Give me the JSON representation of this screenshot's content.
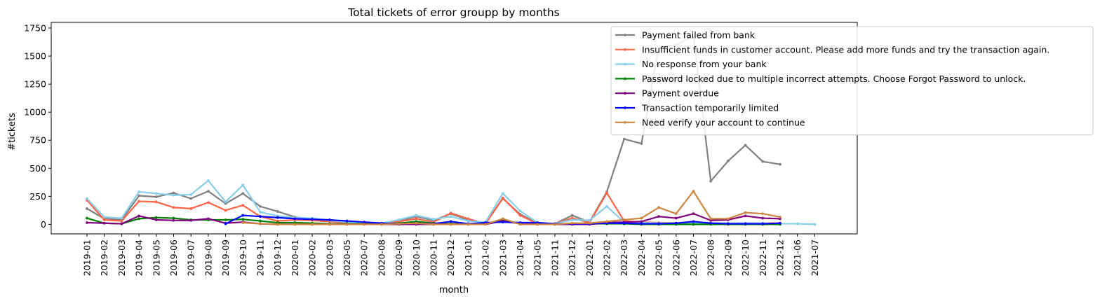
{
  "chart_data": {
    "type": "line",
    "title": "Total tickets of error groupp by months",
    "xlabel": "month",
    "ylabel": "#tickets",
    "ylim": [
      -85,
      1800
    ],
    "yticks": [
      0,
      250,
      500,
      750,
      1000,
      1250,
      1500,
      1750
    ],
    "grid": false,
    "legend_position": "top-right",
    "categories": [
      "2019-01",
      "2019-02",
      "2019-03",
      "2019-04",
      "2019-05",
      "2019-06",
      "2019-07",
      "2019-08",
      "2019-09",
      "2019-10",
      "2019-11",
      "2019-12",
      "2020-01",
      "2020-02",
      "2020-03",
      "2020-05",
      "2020-07",
      "2020-08",
      "2020-09",
      "2020-10",
      "2020-11",
      "2020-12",
      "2021-01",
      "2021-02",
      "2021-03",
      "2021-04",
      "2021-05",
      "2021-11",
      "2021-12",
      "2022-01",
      "2022-02",
      "2022-03",
      "2022-04",
      "2022-05",
      "2022-06",
      "2022-07",
      "2022-08",
      "2022-09",
      "2022-10",
      "2022-11",
      "2022-12",
      "2021-06",
      "2021-07"
    ],
    "series": [
      {
        "name": "Payment failed from bank",
        "color": "#808080",
        "values": [
          140,
          50,
          40,
          255,
          245,
          280,
          230,
          295,
          185,
          275,
          160,
          115,
          65,
          45,
          30,
          20,
          15,
          10,
          30,
          70,
          35,
          95,
          40,
          10,
          230,
          90,
          10,
          5,
          80,
          20,
          290,
          760,
          720,
          1580,
          1600,
          1680,
          385,
          565,
          705,
          560,
          535,
          null,
          null
        ]
      },
      {
        "name": "Insufficient funds in customer account. Please add more funds and try the transaction again.",
        "color": "#ff6347",
        "values": [
          215,
          40,
          30,
          205,
          200,
          150,
          140,
          195,
          125,
          170,
          70,
          30,
          40,
          35,
          25,
          15,
          10,
          10,
          25,
          50,
          20,
          100,
          50,
          5,
          235,
          80,
          5,
          5,
          55,
          15,
          280,
          30,
          20,
          15,
          10,
          15,
          10,
          10,
          10,
          10,
          10,
          null,
          null
        ]
      },
      {
        "name": "No response from your bank",
        "color": "#87ceeb",
        "values": [
          230,
          65,
          55,
          290,
          275,
          260,
          265,
          390,
          200,
          350,
          110,
          75,
          60,
          55,
          35,
          20,
          15,
          10,
          40,
          80,
          45,
          70,
          30,
          20,
          275,
          120,
          15,
          5,
          40,
          35,
          160,
          20,
          15,
          10,
          10,
          10,
          10,
          10,
          10,
          10,
          5,
          5,
          0
        ]
      },
      {
        "name": "Password locked due to multiple incorrect attempts. Choose Forgot Password to unlock.",
        "color": "#008000",
        "values": [
          55,
          10,
          5,
          50,
          60,
          55,
          40,
          40,
          40,
          45,
          30,
          15,
          15,
          10,
          5,
          5,
          5,
          5,
          10,
          25,
          10,
          5,
          5,
          5,
          35,
          10,
          5,
          0,
          5,
          5,
          5,
          5,
          0,
          0,
          0,
          0,
          0,
          0,
          0,
          0,
          0,
          null,
          null
        ]
      },
      {
        "name": "Payment overdue",
        "color": "#800080",
        "values": [
          15,
          10,
          5,
          75,
          40,
          35,
          35,
          50,
          10,
          20,
          5,
          0,
          0,
          0,
          0,
          0,
          0,
          0,
          0,
          0,
          0,
          0,
          0,
          0,
          30,
          5,
          0,
          0,
          0,
          0,
          15,
          20,
          25,
          70,
          55,
          95,
          35,
          40,
          75,
          55,
          50,
          null,
          null
        ]
      },
      {
        "name": "Transaction temporarily limited",
        "color": "#0000ff",
        "values": [
          null,
          null,
          null,
          null,
          null,
          null,
          null,
          null,
          5,
          80,
          70,
          60,
          50,
          45,
          40,
          30,
          20,
          10,
          5,
          10,
          5,
          25,
          5,
          15,
          20,
          15,
          15,
          5,
          5,
          5,
          10,
          10,
          5,
          5,
          10,
          25,
          10,
          5,
          5,
          5,
          10,
          null,
          null
        ]
      },
      {
        "name": "Need verify your account to continue",
        "color": "#cd853f",
        "values": [
          null,
          null,
          null,
          null,
          null,
          null,
          null,
          null,
          null,
          15,
          5,
          0,
          0,
          0,
          0,
          0,
          0,
          0,
          5,
          10,
          0,
          0,
          0,
          0,
          50,
          0,
          0,
          0,
          10,
          10,
          25,
          40,
          55,
          150,
          95,
          295,
          50,
          50,
          105,
          95,
          65,
          null,
          null
        ]
      }
    ]
  }
}
